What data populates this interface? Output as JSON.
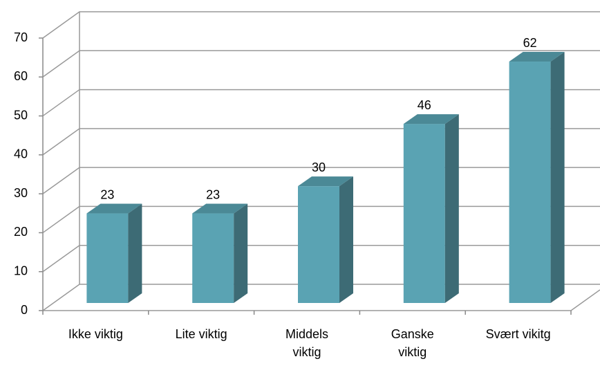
{
  "chart_data": {
    "type": "bar3d",
    "categories": [
      "Ikke viktig",
      "Lite viktig",
      "Middels viktig",
      "Ganske viktig",
      "Svært vikitg"
    ],
    "values": [
      23,
      23,
      30,
      46,
      62
    ],
    "color": "#5aa3b3",
    "ylim": [
      0,
      70
    ],
    "yticks": [
      0,
      10,
      20,
      30,
      40,
      50,
      60,
      70
    ],
    "grid": true
  }
}
